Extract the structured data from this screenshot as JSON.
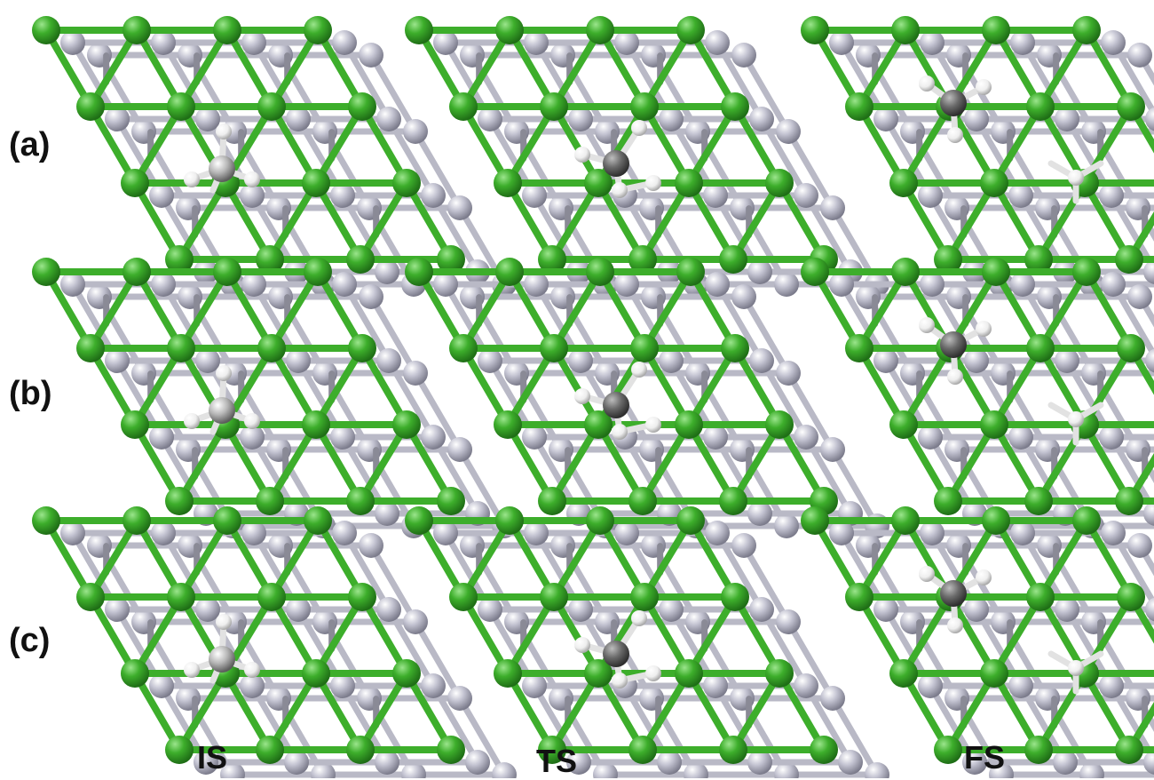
{
  "figure": {
    "row_labels": [
      "(a)",
      "(b)",
      "(c)"
    ],
    "column_labels": [
      "IS",
      "TS",
      "FS"
    ],
    "colors": {
      "surface_atom": "#3dae2b",
      "subsurface_atom": "#bdbdcc",
      "carbon": "#6d6d6d",
      "hydrogen": "#f2f2f2",
      "bond_surface": "#3dae2b",
      "bond_subsurface": "#b9b9c6"
    },
    "panels": [
      {
        "row": "(a)",
        "column": "IS",
        "adsorbate": "CH4-upright-on-top"
      },
      {
        "row": "(a)",
        "column": "TS",
        "adsorbate": "CH3-H-dissociating"
      },
      {
        "row": "(a)",
        "column": "FS",
        "adsorbate": "CH3-plus-H"
      },
      {
        "row": "(b)",
        "column": "IS",
        "adsorbate": "CH4-upright-on-top"
      },
      {
        "row": "(b)",
        "column": "TS",
        "adsorbate": "CH3-H-dissociating"
      },
      {
        "row": "(b)",
        "column": "FS",
        "adsorbate": "CH3-plus-H"
      },
      {
        "row": "(c)",
        "column": "IS",
        "adsorbate": "CH4-upright-on-top"
      },
      {
        "row": "(c)",
        "column": "TS",
        "adsorbate": "CH3-H-dissociating"
      },
      {
        "row": "(c)",
        "column": "FS",
        "adsorbate": "CH3-plus-H"
      }
    ]
  }
}
